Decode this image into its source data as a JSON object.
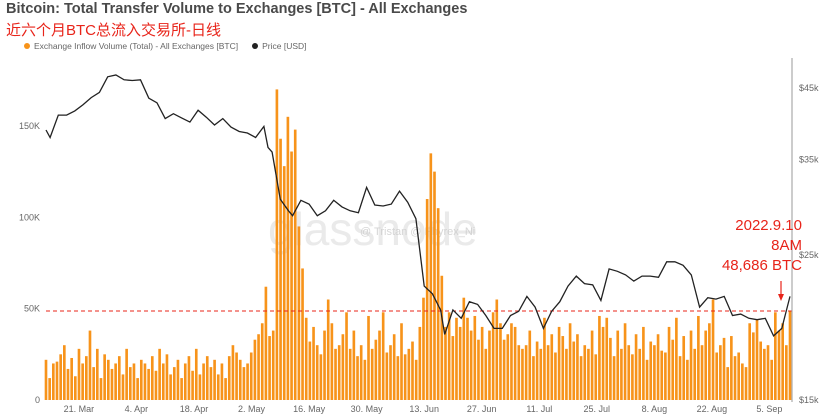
{
  "header": {
    "title": "Bitcoin: Total Transfer Volume to Exchanges [BTC] - All Exchanges",
    "subtitle": "近六个月BTC总流入交易所-日线"
  },
  "legend": [
    {
      "label": "Exchange Inflow Volume (Total) - All Exchanges [BTC]",
      "color": "#f7931a"
    },
    {
      "label": "Price [USD]",
      "color": "#222222"
    }
  ],
  "watermark": {
    "main": "glassnode",
    "sub": "@ Tristan @ Phyrex_Ni"
  },
  "annotation": {
    "line1": "2022.9.10",
    "line2": "8AM",
    "line3": "48,686 BTC"
  },
  "colors": {
    "bars": "#f7931a",
    "price_line": "#222222",
    "reference_line": "#e8241a",
    "annotation": "#e8241a"
  },
  "chart_data": {
    "type": "bar",
    "x_range": [
      "2022-03-13",
      "2022-09-10"
    ],
    "x_tick_labels": [
      "21. Mar",
      "4. Apr",
      "18. Apr",
      "2. May",
      "16. May",
      "30. May",
      "13. Jun",
      "27. Jun",
      "11. Jul",
      "25. Jul",
      "8. Aug",
      "22. Aug",
      "5. Sep"
    ],
    "left_axis": {
      "ticks": [
        "0",
        "50K",
        "100K",
        "150K"
      ],
      "ylim": [
        0,
        185000
      ]
    },
    "right_axis": {
      "ticks": [
        "$15k",
        "$25k",
        "$35k",
        "$45k"
      ],
      "log_scale": true,
      "ylim": [
        15000,
        50000
      ]
    },
    "reference_line": 48686,
    "grid": false,
    "legend_position": "top-left",
    "series": [
      {
        "name": "Exchange Inflow Volume (Total) - All Exchanges [BTC]",
        "type": "bar",
        "values": [
          22000,
          12000,
          20000,
          21000,
          25000,
          30000,
          17000,
          23000,
          13000,
          28000,
          20000,
          24000,
          38000,
          18000,
          28000,
          12000,
          25000,
          22000,
          17000,
          20000,
          24000,
          14000,
          28000,
          18000,
          20000,
          12000,
          22000,
          20000,
          17000,
          24000,
          16000,
          28000,
          20000,
          25000,
          14000,
          18000,
          22000,
          12000,
          20000,
          24000,
          16000,
          28000,
          14000,
          20000,
          24000,
          18000,
          22000,
          14000,
          20000,
          12000,
          24000,
          30000,
          26000,
          22000,
          18000,
          20000,
          26000,
          33000,
          36000,
          42000,
          62000,
          35000,
          38000,
          170000,
          143000,
          128000,
          155000,
          136000,
          148000,
          95000,
          72000,
          45000,
          32000,
          40000,
          30000,
          25000,
          38000,
          55000,
          42000,
          28000,
          30000,
          36000,
          48000,
          28000,
          38000,
          24000,
          30000,
          22000,
          46000,
          28000,
          33000,
          38000,
          48000,
          26000,
          30000,
          36000,
          24000,
          42000,
          25000,
          28000,
          32000,
          22000,
          40000,
          56000,
          110000,
          135000,
          125000,
          105000,
          68000,
          40000,
          48000,
          35000,
          45000,
          40000,
          56000,
          45000,
          38000,
          46000,
          33000,
          40000,
          28000,
          38000,
          48000,
          55000,
          42000,
          33000,
          36000,
          42000,
          40000,
          30000,
          28000,
          30000,
          38000,
          24000,
          32000,
          28000,
          45000,
          30000,
          36000,
          26000,
          40000,
          35000,
          28000,
          42000,
          32000,
          36000,
          24000,
          30000,
          28000,
          38000,
          25000,
          46000,
          40000,
          45000,
          34000,
          24000,
          38000,
          28000,
          42000,
          30000,
          25000,
          36000,
          28000,
          40000,
          22000,
          32000,
          30000,
          36000,
          27000,
          26000,
          40000,
          33000,
          45000,
          24000,
          35000,
          22000,
          38000,
          28000,
          46000,
          30000,
          38000,
          42000,
          55000,
          26000,
          30000,
          34000,
          18000,
          35000,
          24000,
          26000,
          20000,
          18000,
          42000,
          37000,
          44000,
          32000,
          28000,
          30000,
          22000,
          48000,
          38000,
          42000,
          30000,
          48686
        ]
      },
      {
        "name": "Price [USD]",
        "type": "line",
        "points": [
          [
            "2022-03-13",
            38800
          ],
          [
            "2022-03-14",
            37800
          ],
          [
            "2022-03-16",
            40900
          ],
          [
            "2022-03-18",
            40900
          ],
          [
            "2022-03-20",
            41500
          ],
          [
            "2022-03-22",
            42400
          ],
          [
            "2022-03-24",
            43500
          ],
          [
            "2022-03-26",
            44300
          ],
          [
            "2022-03-28",
            46800
          ],
          [
            "2022-03-30",
            47100
          ],
          [
            "2022-04-01",
            46300
          ],
          [
            "2022-04-03",
            46200
          ],
          [
            "2022-04-05",
            46300
          ],
          [
            "2022-04-07",
            43400
          ],
          [
            "2022-04-09",
            42700
          ],
          [
            "2022-04-11",
            40400
          ],
          [
            "2022-04-13",
            41100
          ],
          [
            "2022-04-15",
            40500
          ],
          [
            "2022-04-17",
            39900
          ],
          [
            "2022-04-19",
            41600
          ],
          [
            "2022-04-21",
            40600
          ],
          [
            "2022-04-23",
            39500
          ],
          [
            "2022-04-25",
            40400
          ],
          [
            "2022-04-27",
            39200
          ],
          [
            "2022-04-29",
            38600
          ],
          [
            "2022-05-01",
            38400
          ],
          [
            "2022-05-03",
            37800
          ],
          [
            "2022-05-05",
            39300
          ],
          [
            "2022-05-06",
            36500
          ],
          [
            "2022-05-07",
            35900
          ],
          [
            "2022-05-09",
            30400
          ],
          [
            "2022-05-11",
            29200
          ],
          [
            "2022-05-12",
            28700
          ],
          [
            "2022-05-14",
            30300
          ],
          [
            "2022-05-16",
            29900
          ],
          [
            "2022-05-18",
            28700
          ],
          [
            "2022-05-20",
            29200
          ],
          [
            "2022-05-22",
            30300
          ],
          [
            "2022-05-24",
            29600
          ],
          [
            "2022-05-26",
            29200
          ],
          [
            "2022-05-28",
            29000
          ],
          [
            "2022-05-30",
            31700
          ],
          [
            "2022-06-01",
            29800
          ],
          [
            "2022-06-03",
            29700
          ],
          [
            "2022-06-05",
            29900
          ],
          [
            "2022-06-07",
            31300
          ],
          [
            "2022-06-09",
            30100
          ],
          [
            "2022-06-11",
            28400
          ],
          [
            "2022-06-13",
            22400
          ],
          [
            "2022-06-15",
            21800
          ],
          [
            "2022-06-17",
            20600
          ],
          [
            "2022-06-18",
            18900
          ],
          [
            "2022-06-20",
            20600
          ],
          [
            "2022-06-22",
            20000
          ],
          [
            "2022-06-24",
            21200
          ],
          [
            "2022-06-26",
            21000
          ],
          [
            "2022-06-28",
            20200
          ],
          [
            "2022-06-30",
            19300
          ],
          [
            "2022-07-02",
            19300
          ],
          [
            "2022-07-04",
            20200
          ],
          [
            "2022-07-06",
            20500
          ],
          [
            "2022-07-08",
            21600
          ],
          [
            "2022-07-10",
            20800
          ],
          [
            "2022-07-12",
            19300
          ],
          [
            "2022-07-14",
            20500
          ],
          [
            "2022-07-16",
            21200
          ],
          [
            "2022-07-18",
            22400
          ],
          [
            "2022-07-20",
            23200
          ],
          [
            "2022-07-22",
            22600
          ],
          [
            "2022-07-24",
            22500
          ],
          [
            "2022-07-26",
            21300
          ],
          [
            "2022-07-28",
            23800
          ],
          [
            "2022-07-30",
            23600
          ],
          [
            "2022-08-01",
            23300
          ],
          [
            "2022-08-03",
            22800
          ],
          [
            "2022-08-05",
            23200
          ],
          [
            "2022-08-07",
            23200
          ],
          [
            "2022-08-09",
            23100
          ],
          [
            "2022-08-11",
            24400
          ],
          [
            "2022-08-13",
            24400
          ],
          [
            "2022-08-15",
            24100
          ],
          [
            "2022-08-17",
            23300
          ],
          [
            "2022-08-19",
            20800
          ],
          [
            "2022-08-21",
            21500
          ],
          [
            "2022-08-23",
            21400
          ],
          [
            "2022-08-25",
            21600
          ],
          [
            "2022-08-27",
            20200
          ],
          [
            "2022-08-29",
            20300
          ],
          [
            "2022-08-31",
            20000
          ],
          [
            "2022-09-02",
            19900
          ],
          [
            "2022-09-04",
            20000
          ],
          [
            "2022-09-06",
            18800
          ],
          [
            "2022-09-08",
            19300
          ],
          [
            "2022-09-10",
            21600
          ]
        ]
      }
    ]
  }
}
